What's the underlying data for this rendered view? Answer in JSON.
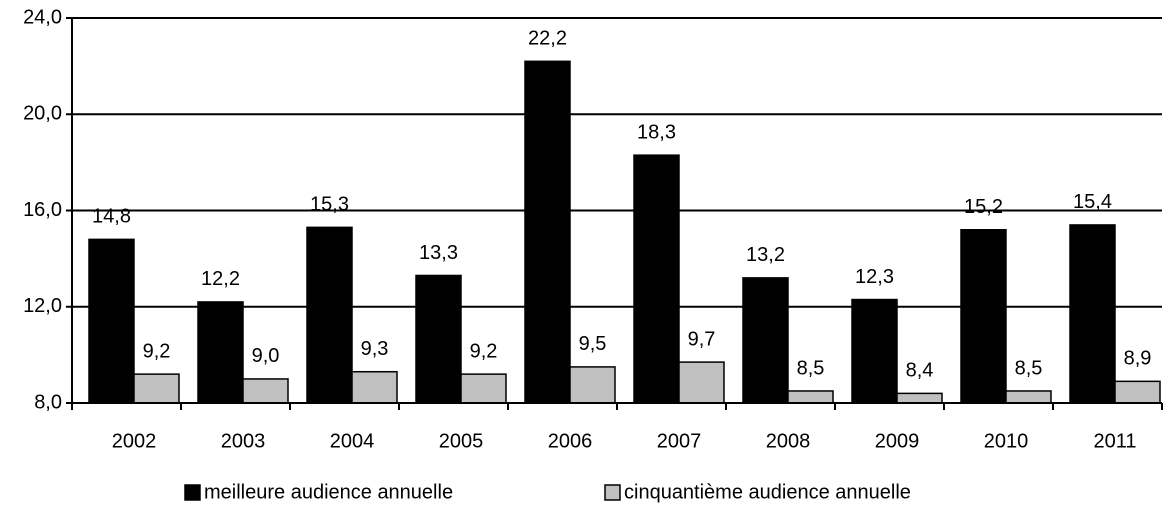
{
  "chart_data": {
    "type": "bar",
    "categories": [
      "2002",
      "2003",
      "2004",
      "2005",
      "2006",
      "2007",
      "2008",
      "2009",
      "2010",
      "2011"
    ],
    "series": [
      {
        "name": "meilleure audience annuelle",
        "color": "#000000",
        "values": [
          14.8,
          12.2,
          15.3,
          13.3,
          22.2,
          18.3,
          13.2,
          12.3,
          15.2,
          15.4
        ],
        "value_labels": [
          "14,8",
          "12,2",
          "15,3",
          "13,3",
          "22,2",
          "18,3",
          "13,2",
          "12,3",
          "15,2",
          "15,4"
        ]
      },
      {
        "name": "cinquantième audience annuelle",
        "color": "#c0c0c0",
        "values": [
          9.2,
          9.0,
          9.3,
          9.2,
          9.5,
          9.7,
          8.5,
          8.4,
          8.5,
          8.9
        ],
        "value_labels": [
          "9,2",
          "9,0",
          "9,3",
          "9,2",
          "9,5",
          "9,7",
          "8,5",
          "8,4",
          "8,5",
          "8,9"
        ]
      }
    ],
    "ylim": [
      8,
      24
    ],
    "yticks": [
      {
        "value": 8,
        "label": "8,0"
      },
      {
        "value": 12,
        "label": "12,0"
      },
      {
        "value": 16,
        "label": "16,0"
      },
      {
        "value": 20,
        "label": "20,0"
      },
      {
        "value": 24,
        "label": "24,0"
      }
    ],
    "grid": true,
    "legend": "bottom"
  }
}
